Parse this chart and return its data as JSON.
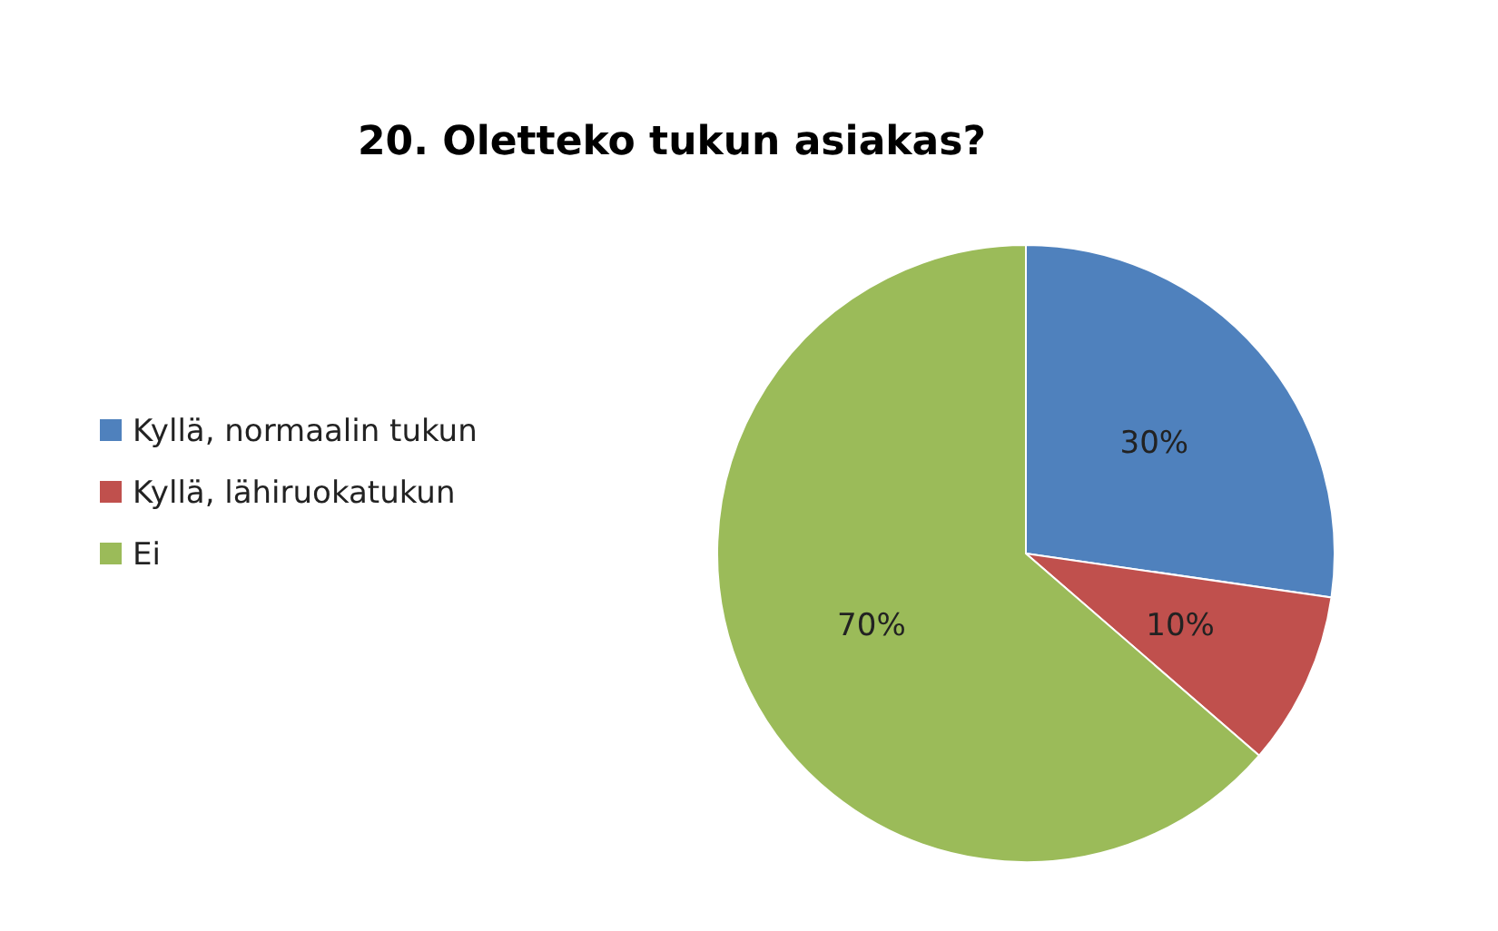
{
  "chart_data": {
    "type": "pie",
    "title": "20. Oletteko tukun asiakas?",
    "categories": [
      "Kyllä, normaalin tukun",
      "Kyllä, lähiruokatukun",
      "Ei"
    ],
    "values": [
      30,
      10,
      70
    ],
    "colors": [
      "#4f81bd",
      "#c0504d",
      "#9bbb59"
    ],
    "value_labels": [
      "30%",
      "10%",
      "70%"
    ],
    "legend": "left"
  }
}
